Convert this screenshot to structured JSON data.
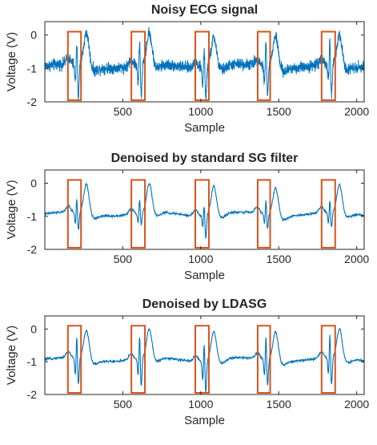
{
  "chart_data": [
    {
      "type": "line",
      "title": "Noisy ECG signal",
      "xlabel": "Sample",
      "ylabel": "Voltage (V)",
      "xlim": [
        0,
        2048
      ],
      "ylim": [
        -2,
        0.4
      ],
      "xticks": [
        "500",
        "1000",
        "1500",
        "2000"
      ],
      "yticks": [
        "0",
        "-1",
        "-2"
      ],
      "noise_level": 0.14,
      "series_color": "#0072BD",
      "highlight_color": "#D95319",
      "highlight_windows": [
        {
          "x0": 148,
          "x1": 232,
          "y0": -1.95,
          "y1": 0.1
        },
        {
          "x0": 555,
          "x1": 642,
          "y0": -1.95,
          "y1": 0.1
        },
        {
          "x0": 965,
          "x1": 1052,
          "y0": -1.95,
          "y1": 0.1
        },
        {
          "x0": 1365,
          "x1": 1445,
          "y0": -1.95,
          "y1": 0.1
        },
        {
          "x0": 1775,
          "x1": 1862,
          "y0": -1.95,
          "y1": 0.1
        }
      ],
      "beats": [
        {
          "r": 205,
          "q": -1.45,
          "peak": -0.05,
          "s": -1.9,
          "t": 0.05
        },
        {
          "r": 608,
          "q": -1.5,
          "peak": 0.0,
          "s": -1.85,
          "t": 0.0
        },
        {
          "r": 1022,
          "q": -1.45,
          "peak": -0.15,
          "s": -1.9,
          "t": -0.05
        },
        {
          "r": 1418,
          "q": -1.4,
          "peak": 0.0,
          "s": -1.75,
          "t": 0.0
        },
        {
          "r": 1828,
          "q": -1.45,
          "peak": -0.05,
          "s": -1.85,
          "t": -0.1
        }
      ]
    },
    {
      "type": "line",
      "title": "Denoised by standard SG filter",
      "xlabel": "Sample",
      "ylabel": "Voltage (V)",
      "xlim": [
        0,
        2048
      ],
      "ylim": [
        -2,
        0.4
      ],
      "xticks": [
        "500",
        "1000",
        "1500",
        "2000"
      ],
      "yticks": [
        "0",
        "-1",
        "-2"
      ],
      "noise_level": 0.03,
      "series_color": "#0072BD",
      "highlight_color": "#D95319",
      "highlight_windows": [
        {
          "x0": 148,
          "x1": 232,
          "y0": -1.95,
          "y1": 0.1
        },
        {
          "x0": 555,
          "x1": 642,
          "y0": -1.95,
          "y1": 0.1
        },
        {
          "x0": 965,
          "x1": 1052,
          "y0": -1.95,
          "y1": 0.1
        },
        {
          "x0": 1365,
          "x1": 1445,
          "y0": -1.95,
          "y1": 0.1
        },
        {
          "x0": 1775,
          "x1": 1862,
          "y0": -1.95,
          "y1": 0.1
        }
      ],
      "beats": [
        {
          "r": 205,
          "q": -1.25,
          "peak": -0.4,
          "s": -1.45,
          "t": -0.05
        },
        {
          "r": 608,
          "q": -1.2,
          "peak": -0.4,
          "s": -1.3,
          "t": -0.05
        },
        {
          "r": 1022,
          "q": -1.25,
          "peak": -0.5,
          "s": -1.6,
          "t": -0.05
        },
        {
          "r": 1418,
          "q": -1.2,
          "peak": -0.4,
          "s": -1.35,
          "t": -0.1
        },
        {
          "r": 1828,
          "q": -1.25,
          "peak": -0.45,
          "s": -1.4,
          "t": -0.1
        }
      ]
    },
    {
      "type": "line",
      "title": "Denoised by LDASG",
      "xlabel": "Sample",
      "ylabel": "Voltage (V)",
      "xlim": [
        0,
        2048
      ],
      "ylim": [
        -2,
        0.4
      ],
      "xticks": [
        "500",
        "1000",
        "1500",
        "2000"
      ],
      "yticks": [
        "0",
        "-1",
        "-2"
      ],
      "noise_level": 0.03,
      "series_color": "#0072BD",
      "highlight_color": "#D95319",
      "highlight_windows": [
        {
          "x0": 148,
          "x1": 232,
          "y0": -1.95,
          "y1": 0.1
        },
        {
          "x0": 555,
          "x1": 642,
          "y0": -1.95,
          "y1": 0.1
        },
        {
          "x0": 965,
          "x1": 1052,
          "y0": -1.95,
          "y1": 0.1
        },
        {
          "x0": 1365,
          "x1": 1445,
          "y0": -1.95,
          "y1": 0.1
        },
        {
          "x0": 1775,
          "x1": 1862,
          "y0": -1.95,
          "y1": 0.1
        }
      ],
      "beats": [
        {
          "r": 205,
          "q": -1.45,
          "peak": -0.1,
          "s": -1.75,
          "t": -0.05
        },
        {
          "r": 608,
          "q": -1.45,
          "peak": -0.05,
          "s": -1.8,
          "t": -0.05
        },
        {
          "r": 1022,
          "q": -1.5,
          "peak": -0.2,
          "s": -1.9,
          "t": -0.05
        },
        {
          "r": 1418,
          "q": -1.45,
          "peak": -0.05,
          "s": -1.7,
          "t": -0.05
        },
        {
          "r": 1828,
          "q": -1.45,
          "peak": -0.05,
          "s": -1.75,
          "t": -0.05
        }
      ]
    }
  ]
}
